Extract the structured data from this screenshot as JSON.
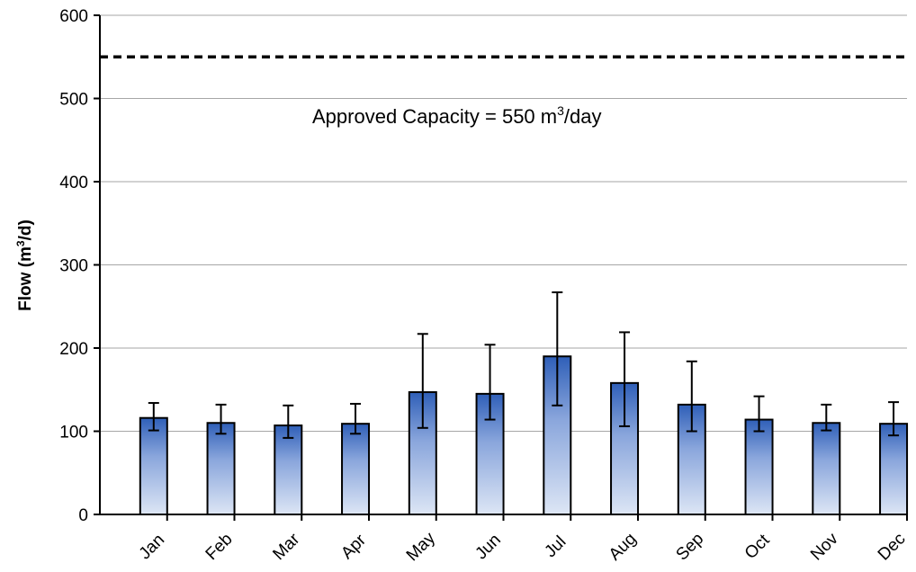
{
  "chart_data": {
    "type": "bar",
    "ylabel_main": "Flow (m",
    "ylabel_sup": "3",
    "ylabel_end": "/d)",
    "xlabel": "",
    "ylim": [
      0,
      600
    ],
    "yticks": [
      0,
      100,
      200,
      300,
      400,
      500,
      600
    ],
    "grid": true,
    "categories": [
      "Jan",
      "Feb",
      "Mar",
      "Apr",
      "May",
      "Jun",
      "Jul",
      "Aug",
      "Sep",
      "Oct",
      "Nov",
      "Dec"
    ],
    "values": [
      116,
      110,
      107,
      109,
      147,
      145,
      190,
      158,
      132,
      114,
      110,
      109
    ],
    "error_low": [
      101,
      97,
      92,
      97,
      104,
      114,
      131,
      106,
      100,
      100,
      101,
      95
    ],
    "error_high": [
      134,
      132,
      131,
      133,
      217,
      204,
      267,
      219,
      184,
      142,
      132,
      135
    ],
    "reference_line": {
      "value": 550,
      "style": "dashed",
      "label_main": "Approved Capacity =  550 m",
      "label_sup": "3",
      "label_end": "/day"
    },
    "colors": {
      "bar_top": "#2f5fb8",
      "bar_bottom": "#dde6f5",
      "bar_outline": "#000000",
      "grid": "#a6a6a6"
    }
  }
}
